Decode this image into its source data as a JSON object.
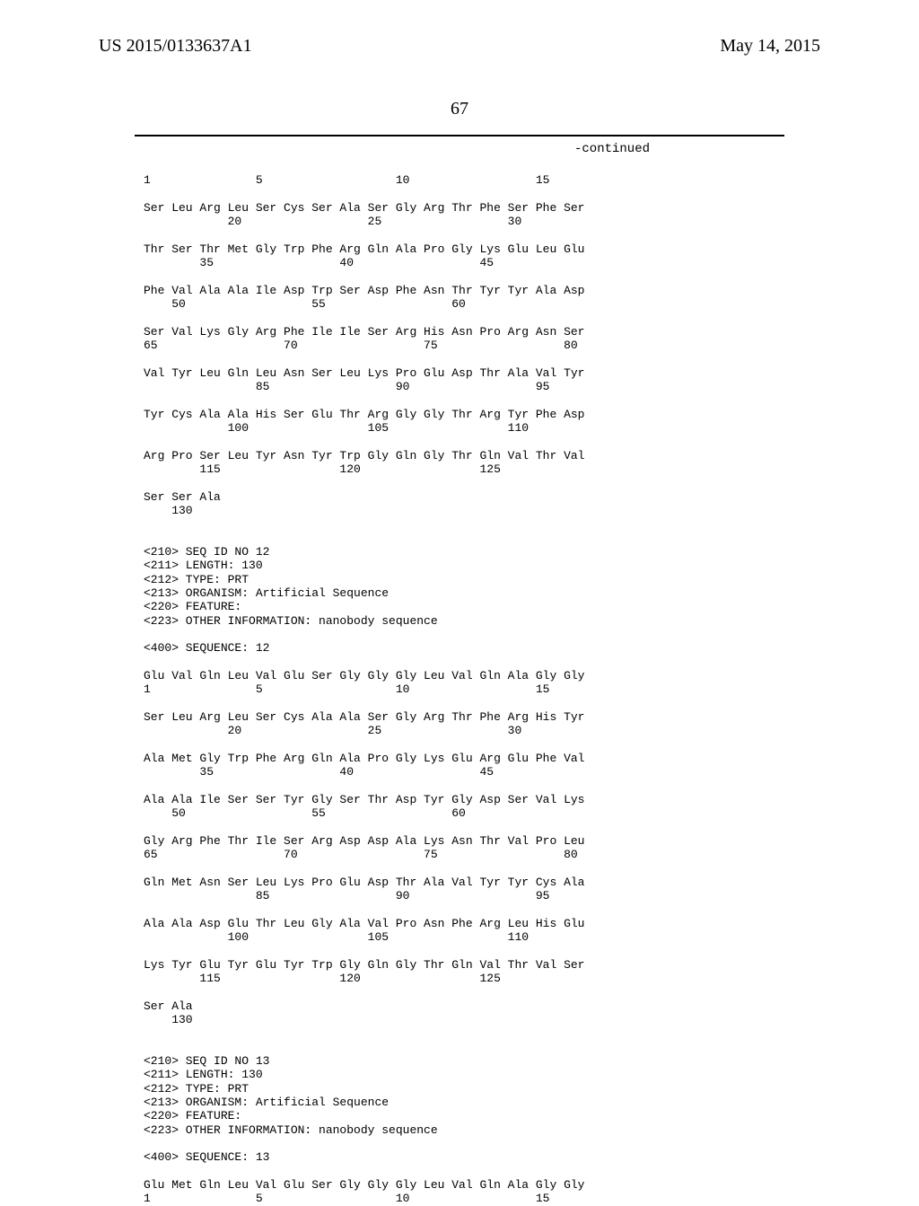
{
  "header": {
    "publication": "US 2015/0133637A1",
    "date": "May 14, 2015",
    "page_number": "67",
    "continued_label": "-continued"
  },
  "sequence_text": "1               5                   10                  15\n\nSer Leu Arg Leu Ser Cys Ser Ala Ser Gly Arg Thr Phe Ser Phe Ser\n            20                  25                  30\n\nThr Ser Thr Met Gly Trp Phe Arg Gln Ala Pro Gly Lys Glu Leu Glu\n        35                  40                  45\n\nPhe Val Ala Ala Ile Asp Trp Ser Asp Phe Asn Thr Tyr Tyr Ala Asp\n    50                  55                  60\n\nSer Val Lys Gly Arg Phe Ile Ile Ser Arg His Asn Pro Arg Asn Ser\n65                  70                  75                  80\n\nVal Tyr Leu Gln Leu Asn Ser Leu Lys Pro Glu Asp Thr Ala Val Tyr\n                85                  90                  95\n\nTyr Cys Ala Ala His Ser Glu Thr Arg Gly Gly Thr Arg Tyr Phe Asp\n            100                 105                 110\n\nArg Pro Ser Leu Tyr Asn Tyr Trp Gly Gln Gly Thr Gln Val Thr Val\n        115                 120                 125\n\nSer Ser Ala\n    130\n\n\n<210> SEQ ID NO 12\n<211> LENGTH: 130\n<212> TYPE: PRT\n<213> ORGANISM: Artificial Sequence\n<220> FEATURE:\n<223> OTHER INFORMATION: nanobody sequence\n\n<400> SEQUENCE: 12\n\nGlu Val Gln Leu Val Glu Ser Gly Gly Gly Leu Val Gln Ala Gly Gly\n1               5                   10                  15\n\nSer Leu Arg Leu Ser Cys Ala Ala Ser Gly Arg Thr Phe Arg His Tyr\n            20                  25                  30\n\nAla Met Gly Trp Phe Arg Gln Ala Pro Gly Lys Glu Arg Glu Phe Val\n        35                  40                  45\n\nAla Ala Ile Ser Ser Tyr Gly Ser Thr Asp Tyr Gly Asp Ser Val Lys\n    50                  55                  60\n\nGly Arg Phe Thr Ile Ser Arg Asp Asp Ala Lys Asn Thr Val Pro Leu\n65                  70                  75                  80\n\nGln Met Asn Ser Leu Lys Pro Glu Asp Thr Ala Val Tyr Tyr Cys Ala\n                85                  90                  95\n\nAla Ala Asp Glu Thr Leu Gly Ala Val Pro Asn Phe Arg Leu His Glu\n            100                 105                 110\n\nLys Tyr Glu Tyr Glu Tyr Trp Gly Gln Gly Thr Gln Val Thr Val Ser\n        115                 120                 125\n\nSer Ala\n    130\n\n\n<210> SEQ ID NO 13\n<211> LENGTH: 130\n<212> TYPE: PRT\n<213> ORGANISM: Artificial Sequence\n<220> FEATURE:\n<223> OTHER INFORMATION: nanobody sequence\n\n<400> SEQUENCE: 13\n\nGlu Met Gln Leu Val Glu Ser Gly Gly Gly Leu Val Gln Ala Gly Gly\n1               5                   10                  15"
}
